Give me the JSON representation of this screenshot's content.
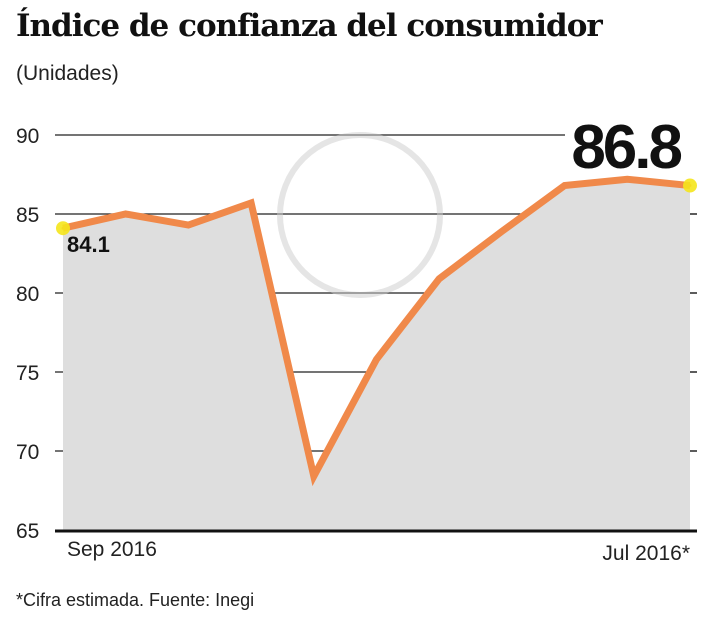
{
  "chart_data": {
    "type": "area",
    "title": "Índice de confianza del consumidor",
    "subtitle": "(Unidades)",
    "x_tick_labels": [
      "Sep 2016",
      "Jul 2016*"
    ],
    "values": [
      84.1,
      85.0,
      84.3,
      85.7,
      68.4,
      75.8,
      80.9,
      83.9,
      86.8,
      87.2,
      86.8
    ],
    "ylim": [
      65,
      90
    ],
    "y_ticks": [
      90,
      85,
      80,
      75,
      70,
      65
    ],
    "grid": true,
    "annotations": {
      "first": "84.1",
      "last": "86.8"
    },
    "note": "*Cifra estimada. Fuente: Inegi",
    "colors": {
      "line": "#f0894a",
      "area": "#dedede",
      "endpoint": "#f5e61c",
      "text": "#111111"
    }
  }
}
